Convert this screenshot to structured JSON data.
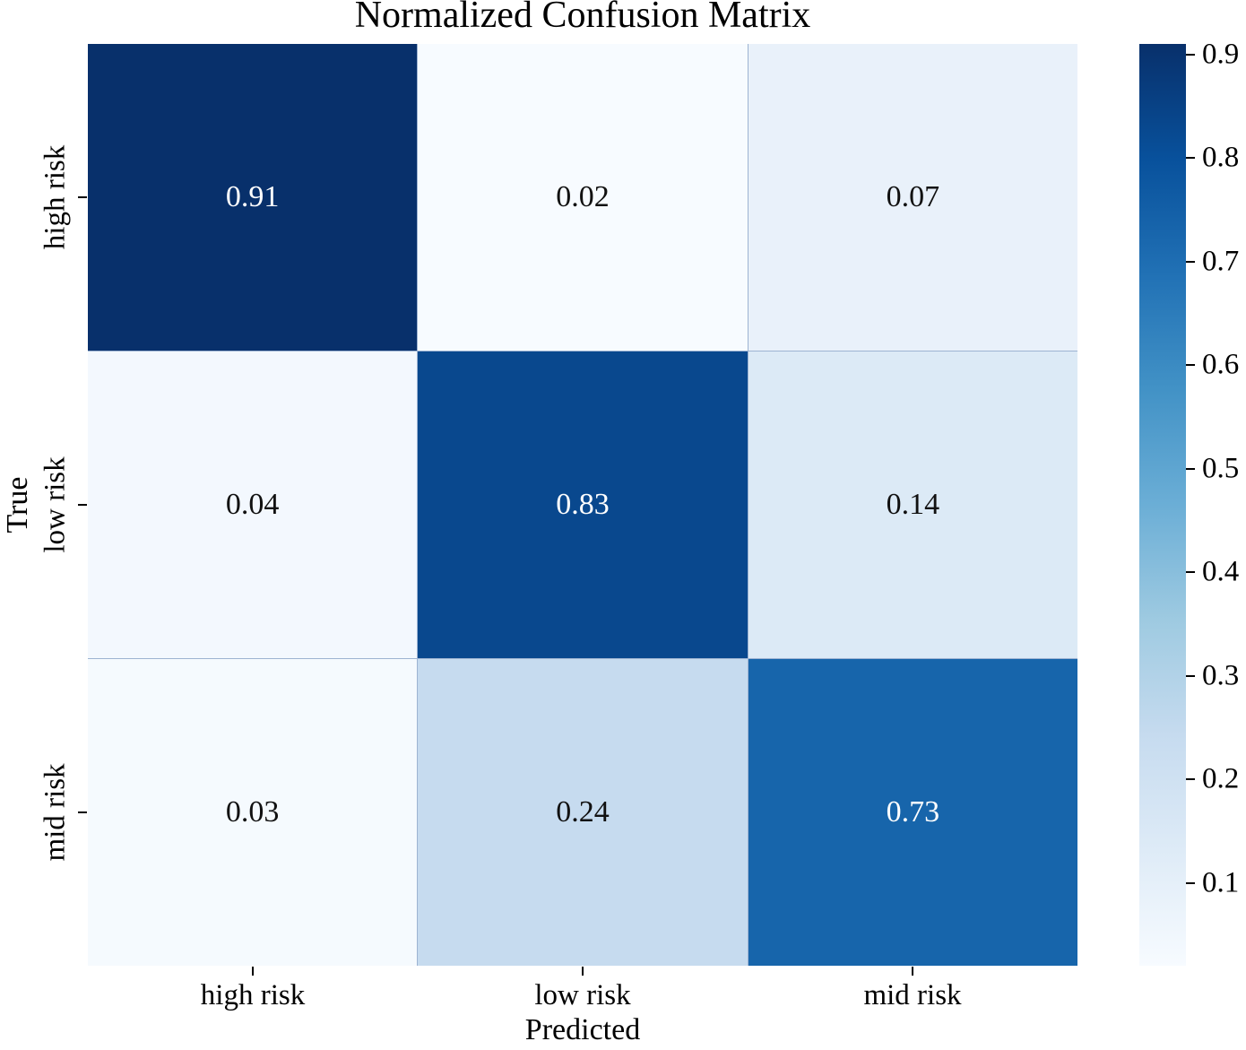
{
  "chart_data": {
    "type": "heatmap",
    "title": "Normalized Confusion Matrix",
    "xlabel": "Predicted",
    "ylabel": "True",
    "x_tick_labels": [
      "high risk",
      "low risk",
      "mid risk"
    ],
    "y_tick_labels": [
      "high risk",
      "low risk",
      "mid risk"
    ],
    "matrix": [
      [
        0.91,
        0.02,
        0.07
      ],
      [
        0.04,
        0.83,
        0.14
      ],
      [
        0.03,
        0.24,
        0.73
      ]
    ],
    "cell_labels": [
      [
        "0.91",
        "0.02",
        "0.07"
      ],
      [
        "0.04",
        "0.83",
        "0.14"
      ],
      [
        "0.03",
        "0.24",
        "0.73"
      ]
    ],
    "cell_colors": [
      [
        "#08306b",
        "#f7fbff",
        "#e9f1fa"
      ],
      [
        "#f3f8fe",
        "#09488e",
        "#dceaf6"
      ],
      [
        "#f5fafe",
        "#c6dbef",
        "#1765ab"
      ]
    ],
    "cell_text_colors": [
      [
        "#ffffff",
        "#111111",
        "#111111"
      ],
      [
        "#111111",
        "#ffffff",
        "#111111"
      ],
      [
        "#111111",
        "#111111",
        "#ffffff"
      ]
    ],
    "colormap": "Blues",
    "vmin": 0.02,
    "vmax": 0.91,
    "grid": false,
    "legend": false,
    "colorbar": {
      "position": "right",
      "tick_labels": [
        "0.9",
        "0.8",
        "0.7",
        "0.6",
        "0.5",
        "0.4",
        "0.3",
        "0.2",
        "0.1"
      ],
      "ticks": [
        0.9,
        0.8,
        0.7,
        0.6,
        0.5,
        0.4,
        0.3,
        0.2,
        0.1
      ],
      "gradient_stops": [
        {
          "pos": 0.0,
          "color": "#f7fbff"
        },
        {
          "pos": 0.125,
          "color": "#deebf7"
        },
        {
          "pos": 0.25,
          "color": "#c6dbef"
        },
        {
          "pos": 0.375,
          "color": "#9ecae1"
        },
        {
          "pos": 0.5,
          "color": "#6baed6"
        },
        {
          "pos": 0.625,
          "color": "#4292c6"
        },
        {
          "pos": 0.75,
          "color": "#2171b5"
        },
        {
          "pos": 0.875,
          "color": "#08519c"
        },
        {
          "pos": 1.0,
          "color": "#08306b"
        }
      ]
    },
    "colors": {
      "background": "#ffffff",
      "tick_color": "#000000",
      "text_color": "#000000"
    }
  }
}
